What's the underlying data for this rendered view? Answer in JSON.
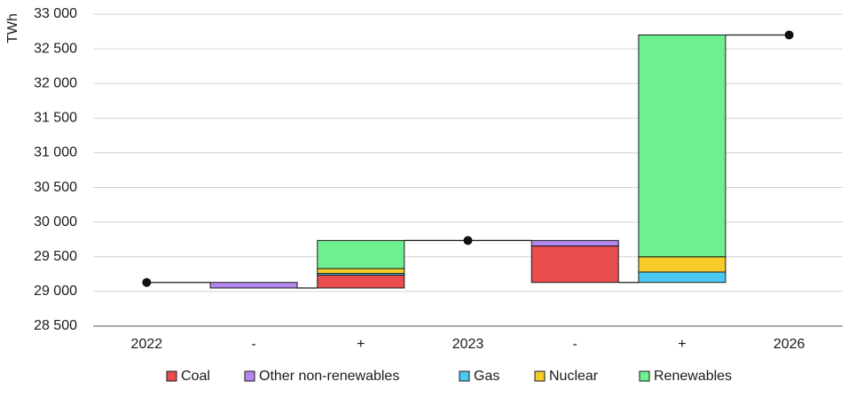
{
  "chart_data": {
    "type": "bar",
    "ylabel": "TWh",
    "ylim": [
      28500,
      33000
    ],
    "yticks": [
      28500,
      29000,
      29500,
      30000,
      30500,
      31000,
      31500,
      32000,
      32500,
      33000
    ],
    "ytick_labels": [
      "28 500",
      "29 000",
      "29 500",
      "30 000",
      "30 500",
      "31 000",
      "31 500",
      "32 000",
      "32 500",
      "33 000"
    ],
    "categories": [
      "2022",
      "-",
      "+",
      "2023",
      "-",
      "+",
      "2026"
    ],
    "grid": true,
    "legend": "bottom",
    "totals": [
      {
        "category_index": 0,
        "value": 29130
      },
      {
        "category_index": 3,
        "value": 29735
      },
      {
        "category_index": 6,
        "value": 32700
      }
    ],
    "series": [
      {
        "name": "Coal",
        "color": "#e84c4c"
      },
      {
        "name": "Other non-renewables",
        "color": "#b388ee"
      },
      {
        "name": "Gas",
        "color": "#4dc8f0"
      },
      {
        "name": "Nuclear",
        "color": "#f5cc2a"
      },
      {
        "name": "Renewables",
        "color": "#6ef090"
      }
    ],
    "changes": [
      {
        "category_index": 1,
        "segments": [
          {
            "series": "Other non-renewables",
            "from": 29130,
            "to": 29050
          }
        ]
      },
      {
        "category_index": 2,
        "segments": [
          {
            "series": "Coal",
            "from": 29050,
            "to": 29235
          },
          {
            "series": "Gas",
            "from": 29235,
            "to": 29260
          },
          {
            "series": "Nuclear",
            "from": 29260,
            "to": 29330
          },
          {
            "series": "Renewables",
            "from": 29330,
            "to": 29735
          }
        ]
      },
      {
        "category_index": 4,
        "segments": [
          {
            "series": "Other non-renewables",
            "from": 29735,
            "to": 29655
          },
          {
            "series": "Coal",
            "from": 29655,
            "to": 29130
          }
        ]
      },
      {
        "category_index": 5,
        "segments": [
          {
            "series": "Gas",
            "from": 29130,
            "to": 29280
          },
          {
            "series": "Nuclear",
            "from": 29280,
            "to": 29500
          },
          {
            "series": "Renewables",
            "from": 29500,
            "to": 32700
          }
        ]
      }
    ]
  }
}
